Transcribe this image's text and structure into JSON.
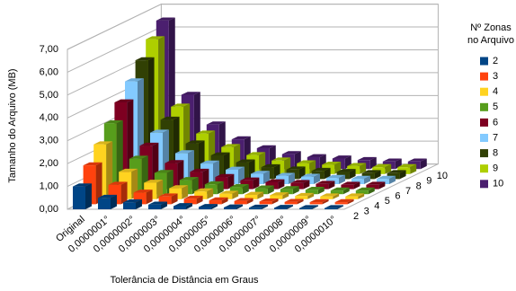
{
  "chart_data": {
    "type": "bar3d",
    "y_label": "Tamanho do Arquivo (MB)",
    "x_label": "Tolerância de Distância em Graus",
    "legend_title": [
      "Nº Zonas",
      "no Arquivo"
    ],
    "categories": [
      "Original",
      "0,0000001°",
      "0,0000002°",
      "0,0000003°",
      "0,0000004°",
      "0,0000005°",
      "0,0000006°",
      "0,0000007°",
      "0,0000008°",
      "0,0000009°",
      "0,0000010°"
    ],
    "ylim": [
      0,
      7
    ],
    "yticks": [
      {
        "value": 0,
        "label": "0,00"
      },
      {
        "value": 1,
        "label": "1,00"
      },
      {
        "value": 2,
        "label": "2,00"
      },
      {
        "value": 3,
        "label": "3,00"
      },
      {
        "value": 4,
        "label": "4,00"
      },
      {
        "value": 5,
        "label": "5,00"
      },
      {
        "value": 6,
        "label": "6,00"
      },
      {
        "value": 7,
        "label": "7,00"
      }
    ],
    "grid": true,
    "series": [
      {
        "name": "2",
        "color": "#004586",
        "values": [
          1.0,
          0.5,
          0.3,
          0.2,
          0.14,
          0.1,
          0.08,
          0.07,
          0.06,
          0.05,
          0.05
        ]
      },
      {
        "name": "3",
        "color": "#ff420e",
        "values": [
          1.7,
          0.85,
          0.51,
          0.34,
          0.24,
          0.17,
          0.14,
          0.12,
          0.1,
          0.09,
          0.09
        ]
      },
      {
        "name": "4",
        "color": "#ffd320",
        "values": [
          2.4,
          1.2,
          0.72,
          0.48,
          0.34,
          0.24,
          0.19,
          0.17,
          0.14,
          0.12,
          0.12
        ]
      },
      {
        "name": "5",
        "color": "#579d1c",
        "values": [
          3.1,
          1.55,
          0.93,
          0.62,
          0.43,
          0.31,
          0.25,
          0.22,
          0.19,
          0.16,
          0.16
        ]
      },
      {
        "name": "6",
        "color": "#7e0021",
        "values": [
          3.8,
          1.9,
          1.14,
          0.76,
          0.53,
          0.38,
          0.3,
          0.27,
          0.23,
          0.19,
          0.19
        ]
      },
      {
        "name": "7",
        "color": "#83caff",
        "values": [
          4.5,
          2.25,
          1.35,
          0.9,
          0.63,
          0.45,
          0.36,
          0.32,
          0.27,
          0.23,
          0.23
        ]
      },
      {
        "name": "8",
        "color": "#314004",
        "values": [
          5.2,
          2.6,
          1.56,
          1.04,
          0.73,
          0.52,
          0.42,
          0.36,
          0.31,
          0.26,
          0.26
        ]
      },
      {
        "name": "9",
        "color": "#aecf00",
        "values": [
          5.9,
          2.95,
          1.77,
          1.18,
          0.83,
          0.59,
          0.47,
          0.41,
          0.35,
          0.3,
          0.3
        ]
      },
      {
        "name": "10",
        "color": "#4b1f6f",
        "values": [
          6.5,
          3.25,
          1.95,
          1.3,
          0.91,
          0.65,
          0.52,
          0.46,
          0.39,
          0.33,
          0.33
        ]
      }
    ]
  }
}
